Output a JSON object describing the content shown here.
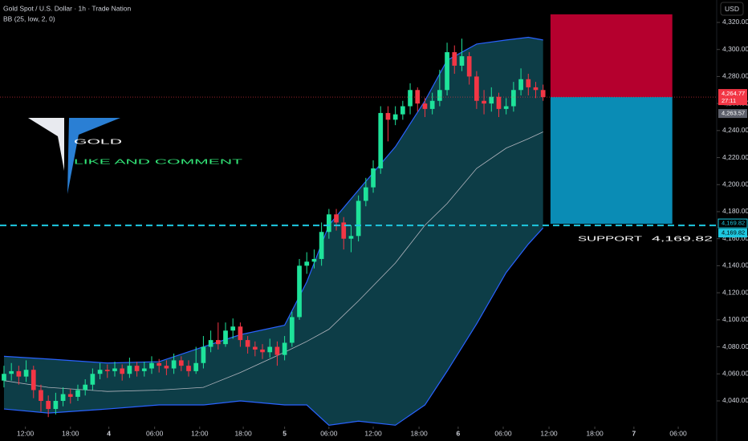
{
  "chart_data": {
    "type": "candlestick",
    "title": "Gold Spot / U.S. Dollar · 1h · Trade Nation",
    "indicator": "BB (25, low, 2, 0)",
    "currency": "USD",
    "ylim": [
      4021,
      4336.6
    ],
    "yticks": [
      {
        "value": 4040,
        "label": "4,040.00"
      },
      {
        "value": 4060,
        "label": "4,060.00"
      },
      {
        "value": 4080,
        "label": "4,080.00"
      },
      {
        "value": 4100,
        "label": "4,100.00"
      },
      {
        "value": 4120,
        "label": "4,120.00"
      },
      {
        "value": 4140,
        "label": "4,140.00"
      },
      {
        "value": 4160,
        "label": "4,160.00"
      },
      {
        "value": 4180,
        "label": "4,180.00"
      },
      {
        "value": 4200,
        "label": "4,200.00"
      },
      {
        "value": 4220,
        "label": "4,220.00"
      },
      {
        "value": 4240,
        "label": "4,240.00"
      },
      {
        "value": 4260,
        "label": "4,260.00"
      },
      {
        "value": 4280,
        "label": "4,280.00"
      },
      {
        "value": 4300,
        "label": "4,300.00"
      },
      {
        "value": 4320,
        "label": "4,320.00"
      }
    ],
    "xlim": [
      -0.54,
      96.4
    ],
    "xticks": [
      {
        "value": 2.9,
        "label": "12:00"
      },
      {
        "value": 9,
        "label": "18:00"
      },
      {
        "value": 14.2,
        "label": "4",
        "bold": true
      },
      {
        "value": 20.4,
        "label": "06:00"
      },
      {
        "value": 26.5,
        "label": "12:00"
      },
      {
        "value": 32.4,
        "label": "18:00"
      },
      {
        "value": 38,
        "label": "5",
        "bold": true
      },
      {
        "value": 44,
        "label": "06:00"
      },
      {
        "value": 50,
        "label": "12:00"
      },
      {
        "value": 56.2,
        "label": "18:00"
      },
      {
        "value": 61.5,
        "label": "6",
        "bold": true
      },
      {
        "value": 67.6,
        "label": "06:00"
      },
      {
        "value": 73.8,
        "label": "12:00"
      },
      {
        "value": 80,
        "label": "18:00"
      },
      {
        "value": 85.3,
        "label": "7",
        "bold": true
      },
      {
        "value": 91.3,
        "label": "06:00"
      }
    ],
    "up_color": "#1ee39a",
    "down_color": "#f23645",
    "candles": {
      "open": [
        4055,
        4060,
        4062,
        4058,
        4063,
        4048,
        4040,
        4034,
        4040,
        4045,
        4043,
        4048,
        4052,
        4060,
        4063,
        4062,
        4064,
        4060,
        4066,
        4062,
        4064,
        4068,
        4066,
        4064,
        4070,
        4066,
        4062,
        4068,
        4080,
        4085,
        4082,
        4092,
        4095,
        4085,
        4080,
        4078,
        4076,
        4080,
        4074,
        4083,
        4102,
        4140,
        4143,
        4145,
        4165,
        4178,
        4172,
        4160,
        4162,
        4188,
        4198,
        4212,
        4253,
        4248,
        4252,
        4258,
        4270,
        4260,
        4256,
        4262,
        4270,
        4298,
        4288,
        4295,
        4280,
        4262,
        4260,
        4265,
        4256,
        4258,
        4270,
        4278,
        4272,
        4270
      ],
      "high": [
        4066,
        4068,
        4066,
        4070,
        4066,
        4052,
        4044,
        4046,
        4050,
        4049,
        4052,
        4056,
        4064,
        4068,
        4067,
        4069,
        4067,
        4072,
        4069,
        4069,
        4073,
        4071,
        4070,
        4075,
        4073,
        4070,
        4080,
        4088,
        4092,
        4098,
        4098,
        4101,
        4098,
        4088,
        4084,
        4082,
        4086,
        4084,
        4088,
        4106,
        4145,
        4150,
        4152,
        4172,
        4182,
        4182,
        4176,
        4170,
        4192,
        4205,
        4218,
        4258,
        4258,
        4258,
        4262,
        4275,
        4272,
        4264,
        4268,
        4285,
        4305,
        4303,
        4308,
        4298,
        4284,
        4270,
        4272,
        4268,
        4264,
        4276,
        4286,
        4282,
        4276,
        4274
      ],
      "low": [
        4050,
        4055,
        4052,
        4054,
        4042,
        4032,
        4028,
        4030,
        4036,
        4038,
        4040,
        4044,
        4048,
        4056,
        4057,
        4058,
        4055,
        4057,
        4058,
        4058,
        4060,
        4061,
        4059,
        4060,
        4062,
        4058,
        4060,
        4064,
        4076,
        4078,
        4080,
        4086,
        4080,
        4075,
        4073,
        4071,
        4072,
        4066,
        4070,
        4080,
        4100,
        4134,
        4138,
        4140,
        4160,
        4166,
        4152,
        4150,
        4158,
        4184,
        4194,
        4208,
        4232,
        4244,
        4248,
        4252,
        4254,
        4250,
        4252,
        4258,
        4266,
        4282,
        4284,
        4274,
        4256,
        4252,
        4254,
        4250,
        4252,
        4254,
        4266,
        4266,
        4264,
        4262
      ],
      "close": [
        4060,
        4062,
        4058,
        4063,
        4048,
        4040,
        4034,
        4040,
        4045,
        4043,
        4048,
        4052,
        4060,
        4063,
        4062,
        4064,
        4060,
        4066,
        4062,
        4064,
        4068,
        4066,
        4064,
        4070,
        4066,
        4062,
        4068,
        4080,
        4085,
        4082,
        4092,
        4095,
        4085,
        4080,
        4078,
        4076,
        4080,
        4074,
        4083,
        4102,
        4140,
        4143,
        4145,
        4165,
        4178,
        4172,
        4160,
        4162,
        4188,
        4198,
        4212,
        4253,
        4248,
        4252,
        4258,
        4270,
        4260,
        4256,
        4262,
        4270,
        4298,
        4288,
        4295,
        4280,
        4262,
        4260,
        4265,
        4256,
        4258,
        4270,
        4278,
        4272,
        4270,
        4264.77
      ]
    },
    "bands": {
      "x": [
        0,
        6,
        14,
        21,
        27,
        32,
        38,
        41,
        44,
        48,
        53,
        57,
        60,
        64,
        68,
        71,
        73
      ],
      "upper": [
        4073,
        4071,
        4068,
        4069,
        4080,
        4089,
        4096,
        4128,
        4170,
        4196,
        4228,
        4262,
        4292,
        4304,
        4307,
        4309,
        4307
      ],
      "middle": [
        4055,
        4050,
        4047,
        4048,
        4050,
        4061,
        4076,
        4084,
        4093,
        4114,
        4142,
        4170,
        4186,
        4212,
        4227,
        4234,
        4239
      ],
      "lower": [
        4034,
        4031,
        4034,
        4037,
        4037,
        4040,
        4037,
        4037,
        4022,
        4025,
        4022,
        4037,
        4062,
        4097,
        4135,
        4156,
        4168
      ],
      "band_color": "#2962ff",
      "middle_color": "#b2b5be",
      "fill": "#0d3d47"
    },
    "position": {
      "from": 74,
      "to": 90.5,
      "stop": 4326,
      "entry": 4264.77,
      "target": 4171,
      "stop_color": "#b5002e",
      "target_color": "#0a8cb5"
    },
    "price_line": {
      "value": 4264.77,
      "label": "4,264.77",
      "color": "#f23645"
    },
    "countdown": "27:11",
    "bid": {
      "value": 4263.57,
      "label": "4,263.57"
    },
    "support": {
      "value": 4169.82,
      "label": "4,169.82",
      "color": "#1ec8e0",
      "text": "SUPPORT"
    },
    "headline": "GOLD",
    "call_to_action": "LIKE AND COMMENT"
  }
}
